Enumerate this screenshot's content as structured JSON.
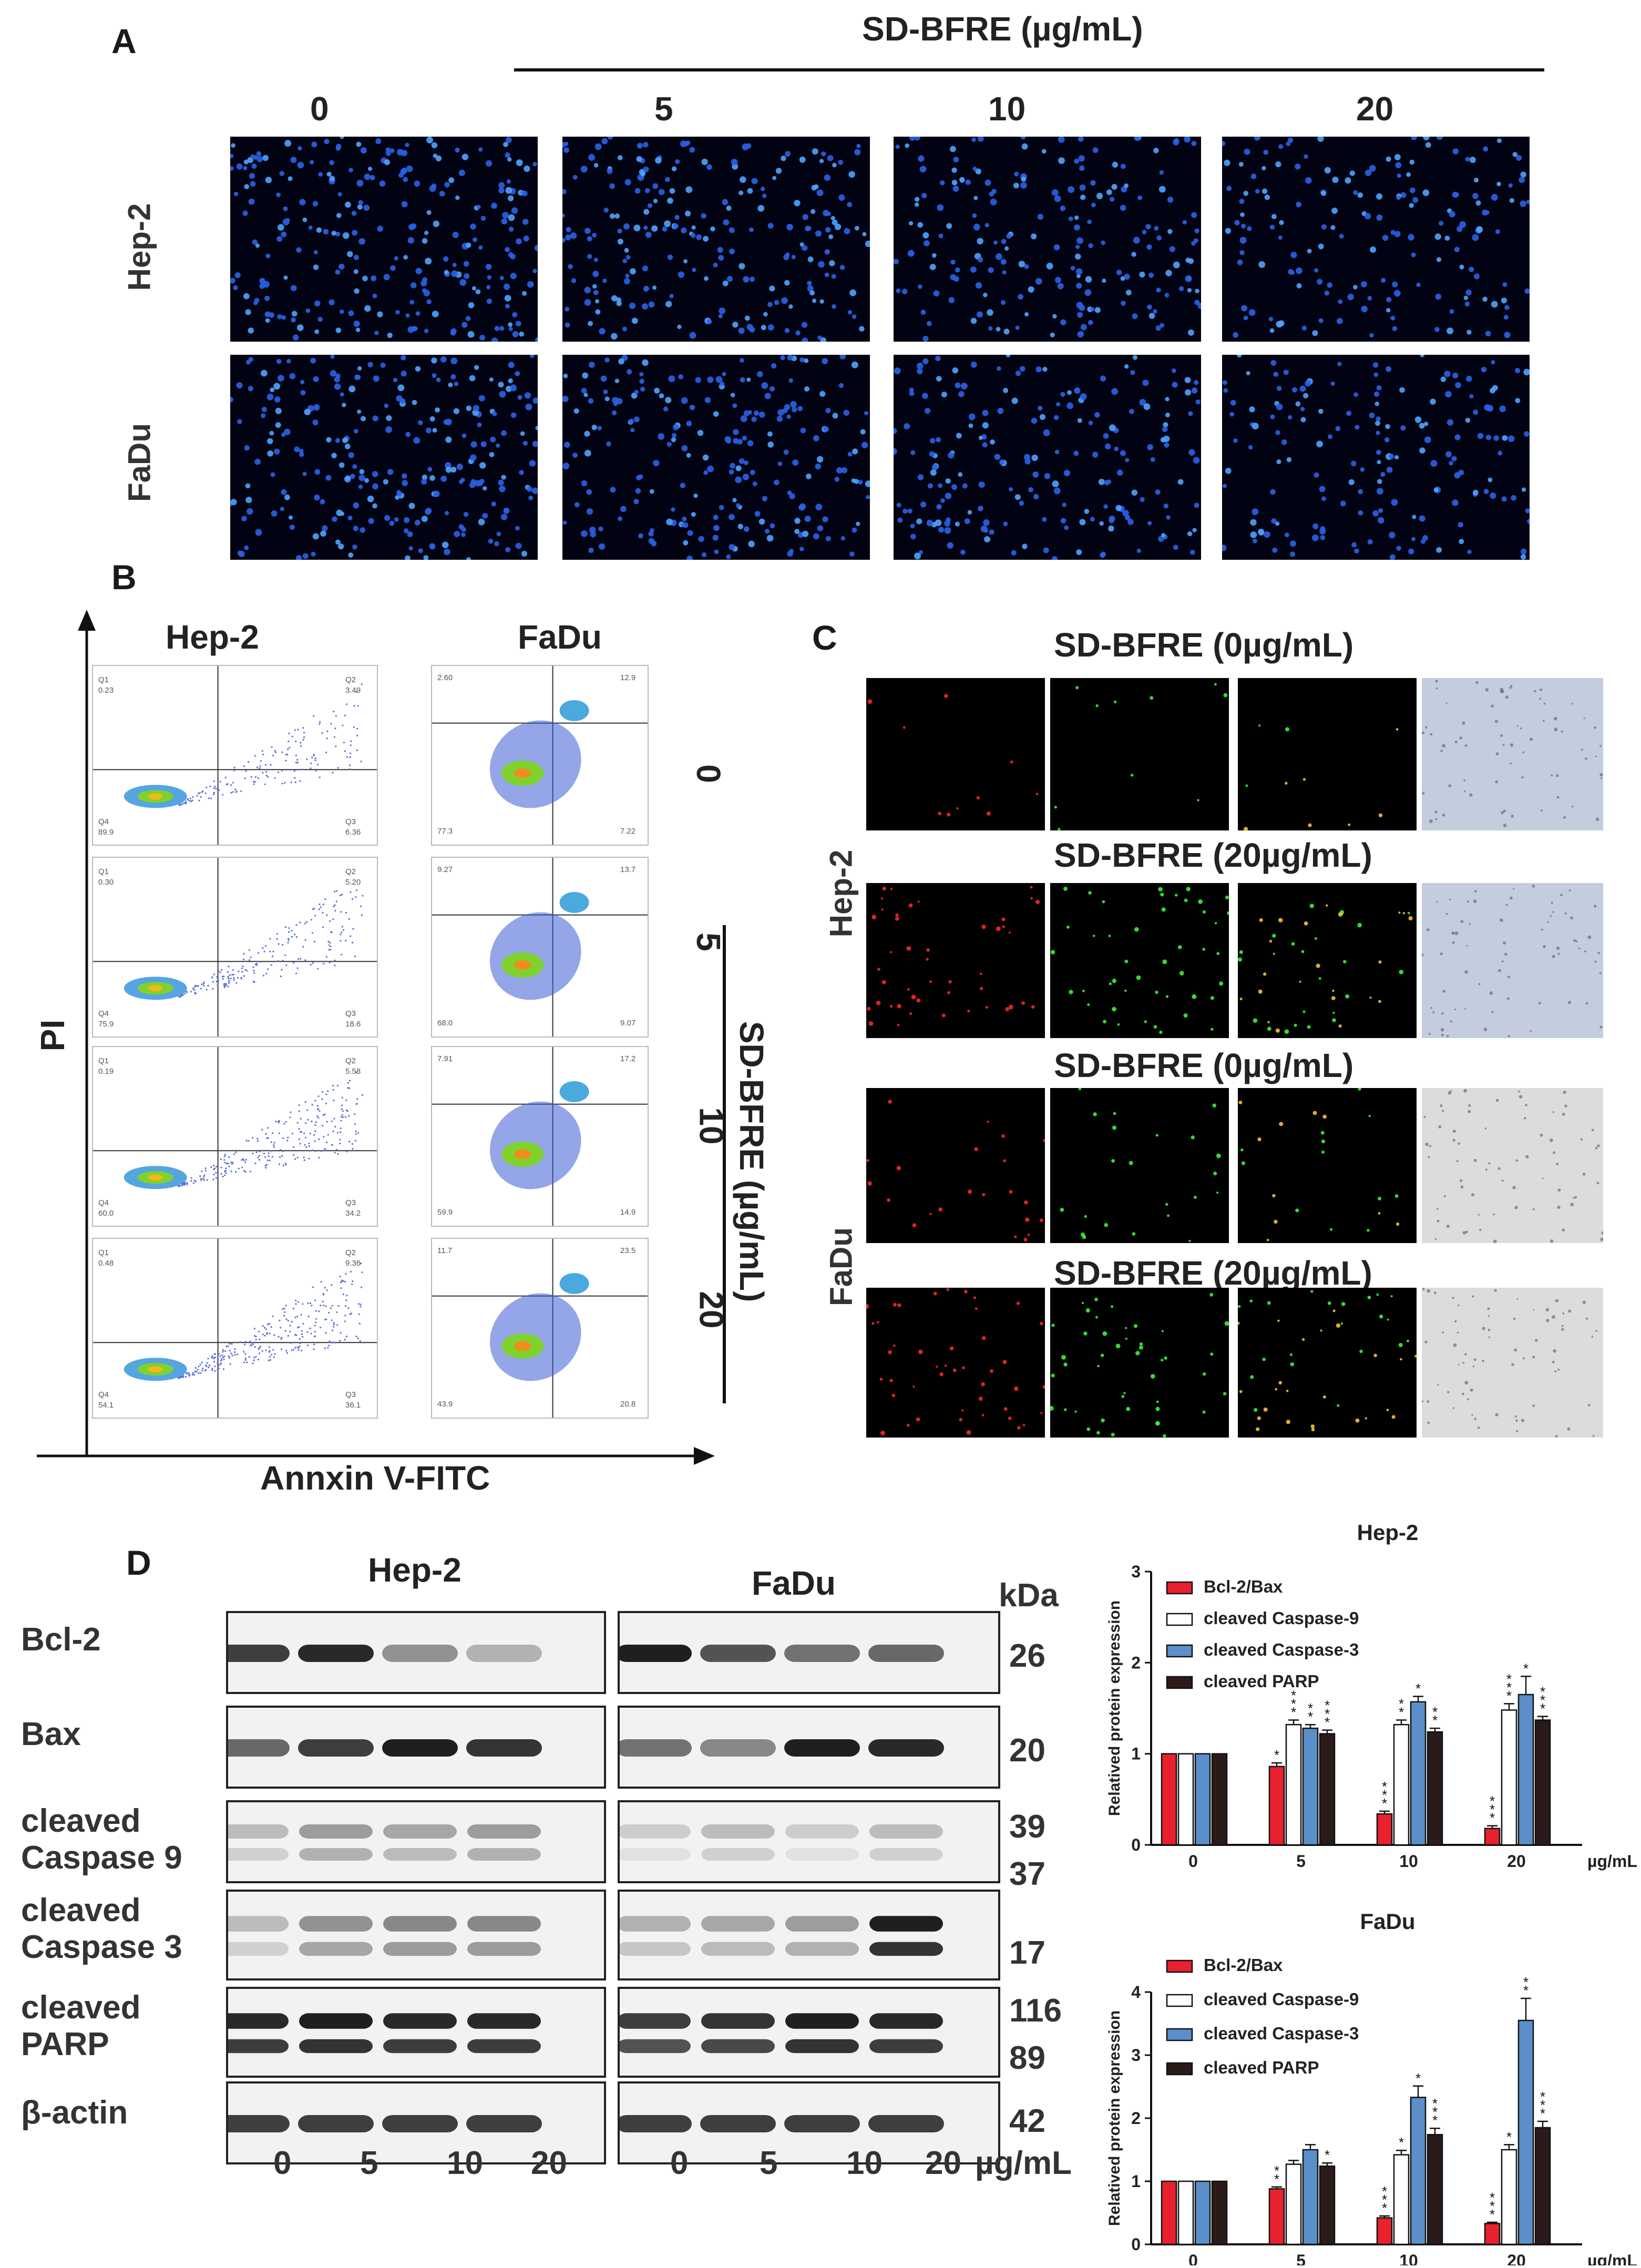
{
  "panelA": {
    "letter": "A",
    "header": "SD-BFRE (µg/mL)",
    "concentrations": [
      "0",
      "5",
      "10",
      "20"
    ],
    "rows": [
      "Hep-2",
      "FaDu"
    ]
  },
  "panelB": {
    "letter": "B",
    "y_axis": "PI",
    "x_axis": "Annxin V-FITC",
    "col_titles": [
      "Hep-2",
      "FaDu"
    ],
    "side_label": "SD-BFRE (µg/mL)",
    "concentrations": [
      "0",
      "5",
      "10",
      "20"
    ],
    "hep2": [
      {
        "q1": "0.23",
        "q2": "3.49",
        "q3": "6.36",
        "q4": "89.9"
      },
      {
        "q1": "0.30",
        "q2": "5.20",
        "q3": "18.6",
        "q4": "75.9"
      },
      {
        "q1": "0.19",
        "q2": "5.58",
        "q3": "34.2",
        "q4": "60.0"
      },
      {
        "q1": "0.48",
        "q2": "9.36",
        "q3": "36.1",
        "q4": "54.1"
      }
    ],
    "fadu": [
      {
        "ul": "2.60",
        "ur": "12.9",
        "ll": "77.3",
        "lr": "7.22"
      },
      {
        "ul": "9.27",
        "ur": "13.7",
        "ll": "68.0",
        "lr": "9.07"
      },
      {
        "ul": "7.91",
        "ur": "17.2",
        "ll": "59.9",
        "lr": "14.9"
      },
      {
        "ul": "11.7",
        "ur": "23.5",
        "ll": "43.9",
        "lr": "20.8"
      }
    ],
    "quad_names": [
      "Q1",
      "Q2",
      "Q3",
      "Q4"
    ]
  },
  "panelC": {
    "letter": "C",
    "titles": [
      "SD-BFRE (0µg/mL)",
      "SD-BFRE (20µg/mL)",
      "SD-BFRE (0µg/mL)",
      "SD-BFRE (20µg/mL)"
    ],
    "rows": [
      "Hep-2",
      "FaDu"
    ]
  },
  "panelD": {
    "letter": "D",
    "cell_lines": [
      "Hep-2",
      "FaDu"
    ],
    "kda_header": "kDa",
    "proteins": [
      {
        "label": "Bcl-2",
        "kda": [
          "26"
        ]
      },
      {
        "label": "Bax",
        "kda": [
          "20"
        ]
      },
      {
        "label": "cleaved\nCaspase 9",
        "kda": [
          "39",
          "37"
        ]
      },
      {
        "label": "cleaved\nCaspase 3",
        "kda": [
          "17"
        ]
      },
      {
        "label": "cleaved\nPARP",
        "kda": [
          "116",
          "89"
        ]
      },
      {
        "label": "β-actin",
        "kda": [
          "42"
        ]
      }
    ],
    "lanes": [
      "0",
      "5",
      "10",
      "20"
    ],
    "unit": "µg/mL"
  },
  "colors": {
    "bcl2bax": "#e8212e",
    "casp9": "#ffffff",
    "casp3": "#5b8fc9",
    "parp": "#2b1a1a"
  },
  "chart_data": [
    {
      "type": "bar",
      "title": "Hep-2",
      "ylabel": "Relatived protein expression",
      "xlabel": "µg/mL",
      "categories": [
        "0",
        "5",
        "10",
        "20"
      ],
      "ylim": [
        0,
        3
      ],
      "yticks": [
        "0",
        "1",
        "2",
        "3"
      ],
      "series": [
        {
          "name": "Bcl-2/Bax",
          "values": [
            1.0,
            0.86,
            0.34,
            0.18
          ],
          "err": [
            0,
            0.04,
            0.03,
            0.03
          ],
          "sig": [
            "",
            "*",
            "***",
            "***"
          ]
        },
        {
          "name": "cleaved Caspase-9",
          "values": [
            1.0,
            1.32,
            1.32,
            1.48
          ],
          "err": [
            0,
            0.05,
            0.05,
            0.07
          ],
          "sig": [
            "",
            "***",
            "**",
            "***"
          ]
        },
        {
          "name": "cleaved Caspase-3",
          "values": [
            1.0,
            1.28,
            1.57,
            1.65
          ],
          "err": [
            0,
            0.04,
            0.06,
            0.2
          ],
          "sig": [
            "",
            "**",
            "*",
            "*"
          ]
        },
        {
          "name": "cleaved PARP",
          "values": [
            1.0,
            1.22,
            1.24,
            1.37
          ],
          "err": [
            0,
            0.04,
            0.04,
            0.04
          ],
          "sig": [
            "",
            "***",
            "**",
            "***"
          ]
        }
      ]
    },
    {
      "type": "bar",
      "title": "FaDu",
      "ylabel": "Relatived protein expression",
      "xlabel": "µg/mL",
      "categories": [
        "0",
        "5",
        "10",
        "20"
      ],
      "ylim": [
        0,
        4
      ],
      "yticks": [
        "0",
        "1",
        "2",
        "3",
        "4"
      ],
      "series": [
        {
          "name": "Bcl-2/Bax",
          "values": [
            1.0,
            0.88,
            0.42,
            0.33
          ],
          "err": [
            0,
            0.03,
            0.03,
            0.02
          ],
          "sig": [
            "",
            "**",
            "***",
            "***"
          ]
        },
        {
          "name": "cleaved Caspase-9",
          "values": [
            1.0,
            1.27,
            1.42,
            1.5
          ],
          "err": [
            0,
            0.06,
            0.07,
            0.08
          ],
          "sig": [
            "",
            "",
            "*",
            "*"
          ]
        },
        {
          "name": "cleaved Caspase-3",
          "values": [
            1.0,
            1.5,
            2.33,
            3.55
          ],
          "err": [
            0,
            0.08,
            0.18,
            0.35
          ],
          "sig": [
            "",
            "",
            "*",
            "**"
          ]
        },
        {
          "name": "cleaved PARP",
          "values": [
            1.0,
            1.24,
            1.74,
            1.85
          ],
          "err": [
            0,
            0.05,
            0.1,
            0.1
          ],
          "sig": [
            "",
            "*",
            "***",
            "***"
          ]
        }
      ]
    }
  ]
}
